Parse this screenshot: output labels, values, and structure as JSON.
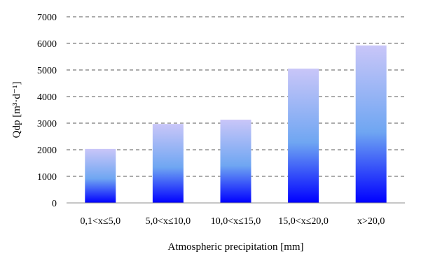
{
  "chart_data": {
    "type": "bar",
    "categories": [
      "0,1<x≤5,0",
      "5,0<x≤10,0",
      "10,0<x≤15,0",
      "15,0<x≤20,0",
      "x>20,0"
    ],
    "values": [
      2030,
      2970,
      3130,
      5050,
      5920
    ],
    "xlabel": "Atmospheric precipitation [mm]",
    "ylabel": "Qdp [m³·d⁻¹]",
    "ylim": [
      0,
      7000
    ],
    "yticks": [
      0,
      1000,
      2000,
      3000,
      4000,
      5000,
      6000,
      7000
    ],
    "grid": true,
    "grid_style": "dashed",
    "legend": "none",
    "colors": {
      "bar_top": "#c9c6f8",
      "bar_mid": "#6fa6f2",
      "bar_bottom": "#0000ff",
      "grid": "#595959",
      "axis": "#000000",
      "text": "#000000"
    }
  }
}
